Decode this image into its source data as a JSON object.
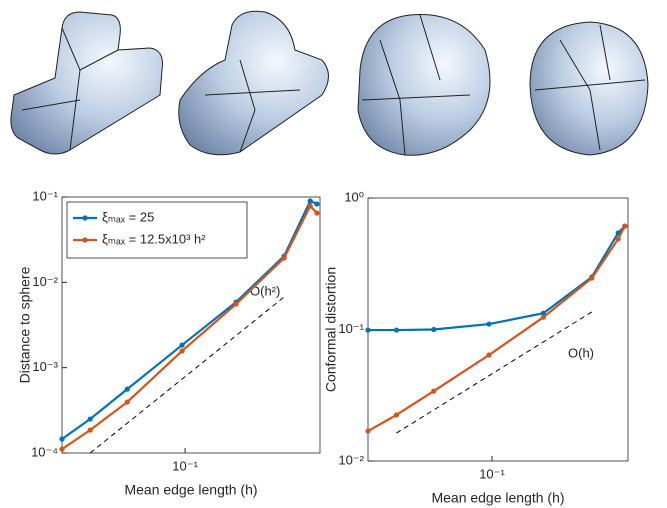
{
  "chart_data": [
    {
      "type": "line",
      "xlabel": "Mean edge length (h)",
      "ylabel": "Distance to sphere",
      "xscale": "log",
      "yscale": "log",
      "xlim": [
        0.0207,
        0.562
      ],
      "ylim": [
        0.0001,
        0.1
      ],
      "xticks": [
        {
          "value": 0.1,
          "label": "10⁻¹"
        }
      ],
      "yticks": [
        {
          "value": 0.0001,
          "label": "10⁻⁴"
        },
        {
          "value": 0.001,
          "label": "10⁻³"
        },
        {
          "value": 0.01,
          "label": "10⁻²"
        },
        {
          "value": 0.1,
          "label": "10⁻¹"
        }
      ],
      "legend": "upper-left",
      "x": [
        0.0207,
        0.0297,
        0.0477,
        0.0962,
        0.192,
        0.355,
        0.496,
        0.54
      ],
      "series": [
        {
          "name": "ξₘₐₓ = 25",
          "color": "#0072bd",
          "values": [
            0.000146,
            0.00025,
            0.00056,
            0.00184,
            0.00587,
            0.0203,
            0.0898,
            0.0828
          ]
        },
        {
          "name": "ξₘₐₓ = 12.5x10³ h²",
          "color": "#d95319",
          "values": [
            0.000111,
            0.000186,
            0.000395,
            0.00157,
            0.00557,
            0.0193,
            0.0784,
            0.0649
          ]
        }
      ],
      "reference": {
        "label": "O(h²)",
        "x": [
          0.0297,
          0.36
        ],
        "values": [
          0.0001,
          0.0069
        ]
      }
    },
    {
      "type": "line",
      "xlabel": "Mean edge length (h)",
      "ylabel": "Conformal distortion",
      "xscale": "log",
      "yscale": "log",
      "xlim": [
        0.0207,
        0.562
      ],
      "ylim": [
        0.01,
        1
      ],
      "xticks": [
        {
          "value": 0.1,
          "label": "10⁻¹"
        }
      ],
      "yticks": [
        {
          "value": 0.01,
          "label": "10⁻²"
        },
        {
          "value": 0.1,
          "label": "10⁻¹"
        },
        {
          "value": 1,
          "label": "10⁰"
        }
      ],
      "x": [
        0.0207,
        0.0297,
        0.0477,
        0.0962,
        0.192,
        0.355,
        0.496,
        0.54
      ],
      "series": [
        {
          "color": "#0072bd",
          "values": [
            0.099,
            0.099,
            0.1,
            0.11,
            0.133,
            0.251,
            0.542,
            0.612
          ]
        },
        {
          "color": "#d95319",
          "values": [
            0.0169,
            0.0224,
            0.034,
            0.064,
            0.124,
            0.246,
            0.488,
            0.612
          ]
        }
      ],
      "reference": {
        "label": "O(h)",
        "x": [
          0.0297,
          0.355
        ],
        "values": [
          0.0163,
          0.136
        ]
      }
    }
  ]
}
